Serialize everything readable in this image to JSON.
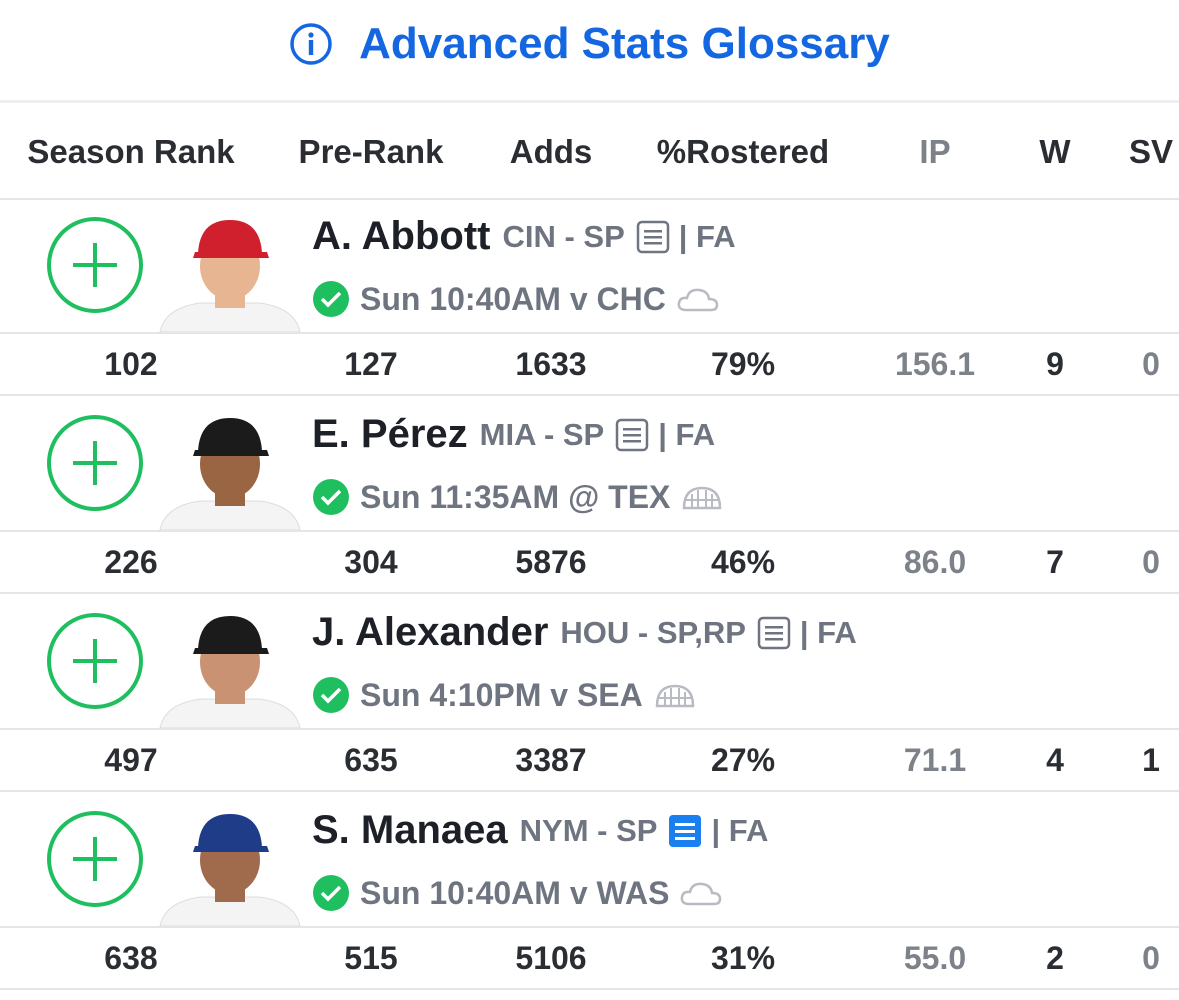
{
  "header": {
    "title": "Advanced Stats Glossary"
  },
  "table": {
    "columns": [
      "Season Rank",
      "Pre-Rank",
      "Adds",
      "%Rostered",
      "IP",
      "W",
      "SV"
    ],
    "players": [
      {
        "name": "A. Abbott",
        "team_position": "CIN - SP",
        "status": "| FA",
        "game": "Sun 10:40AM v CHC",
        "stats": [
          "102",
          "127",
          "1633",
          "79%",
          "156.1",
          "9",
          "0"
        ]
      },
      {
        "name": "E. Pérez",
        "team_position": "MIA - SP",
        "status": "| FA",
        "game": "Sun 11:35AM @ TEX",
        "stats": [
          "226",
          "304",
          "5876",
          "46%",
          "86.0",
          "7",
          "0"
        ]
      },
      {
        "name": "J. Alexander",
        "team_position": "HOU - SP,RP",
        "status": "| FA",
        "game": "Sun 4:10PM v SEA",
        "stats": [
          "497",
          "635",
          "3387",
          "27%",
          "71.1",
          "4",
          "1"
        ]
      },
      {
        "name": "S. Manaea",
        "team_position": "NYM - SP",
        "status": "| FA",
        "game": "Sun 10:40AM v WAS",
        "stats": [
          "638",
          "515",
          "5106",
          "31%",
          "55.0",
          "2",
          "0"
        ]
      }
    ]
  }
}
